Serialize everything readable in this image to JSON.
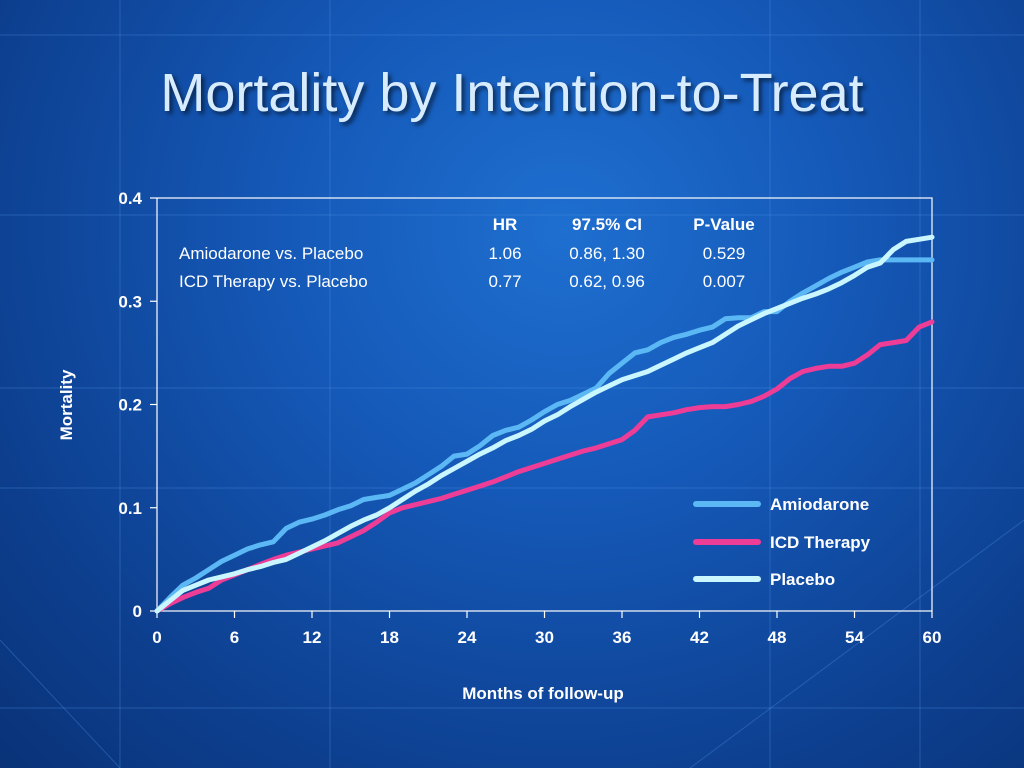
{
  "slide": {
    "title": "Mortality by Intention-to-Treat"
  },
  "colors": {
    "background": "#1559b8",
    "title": "#d8ecff",
    "amiodarone": "#5cb8f5",
    "icd_therapy": "#ee3d96",
    "placebo": "#c9f6ff"
  },
  "stats_table": {
    "headers": [
      "HR",
      "97.5% CI",
      "P-Value"
    ],
    "rows": [
      {
        "label": "Amiodarone vs. Placebo",
        "hr": "1.06",
        "ci": "0.86, 1.30",
        "p": "0.529"
      },
      {
        "label": "ICD Therapy vs. Placebo",
        "hr": "0.77",
        "ci": "0.62, 0.96",
        "p": "0.007"
      }
    ]
  },
  "chart_data": {
    "type": "line",
    "title": "",
    "xlabel": "Months of follow-up",
    "ylabel": "Mortality",
    "xlim": [
      0,
      60
    ],
    "ylim": [
      0,
      0.4
    ],
    "xticks": [
      "0",
      "6",
      "12",
      "18",
      "24",
      "30",
      "36",
      "42",
      "48",
      "54",
      "60"
    ],
    "yticks": [
      "0",
      "0.1",
      "0.2",
      "0.3",
      "0.4"
    ],
    "grid": false,
    "legend_position": "bottom-right",
    "series": [
      {
        "name": "Amiodarone",
        "color": "#5cb8f5",
        "x": [
          0,
          1,
          2,
          3,
          4,
          5,
          6,
          7,
          8,
          9,
          10,
          11,
          12,
          13,
          14,
          15,
          16,
          17,
          18,
          19,
          20,
          21,
          22,
          23,
          24,
          25,
          26,
          27,
          28,
          29,
          30,
          31,
          32,
          33,
          34,
          35,
          36,
          37,
          38,
          39,
          40,
          41,
          42,
          43,
          44,
          45,
          46,
          47,
          48,
          49,
          50,
          51,
          52,
          53,
          54,
          55,
          56,
          57,
          58,
          59,
          60
        ],
        "y": [
          0,
          0.013,
          0.025,
          0.032,
          0.04,
          0.048,
          0.054,
          0.06,
          0.064,
          0.067,
          0.08,
          0.086,
          0.089,
          0.093,
          0.098,
          0.102,
          0.108,
          0.11,
          0.112,
          0.118,
          0.124,
          0.132,
          0.14,
          0.15,
          0.152,
          0.16,
          0.17,
          0.175,
          0.178,
          0.185,
          0.193,
          0.2,
          0.204,
          0.21,
          0.216,
          0.23,
          0.24,
          0.25,
          0.253,
          0.26,
          0.265,
          0.268,
          0.272,
          0.275,
          0.283,
          0.284,
          0.284,
          0.29,
          0.29,
          0.3,
          0.308,
          0.315,
          0.322,
          0.328,
          0.333,
          0.338,
          0.34,
          0.34,
          0.34,
          0.34,
          0.34
        ]
      },
      {
        "name": "ICD Therapy",
        "color": "#ee3d96",
        "x": [
          0,
          1,
          2,
          3,
          4,
          5,
          6,
          7,
          8,
          9,
          10,
          11,
          12,
          13,
          14,
          15,
          16,
          17,
          18,
          19,
          20,
          21,
          22,
          23,
          24,
          25,
          26,
          27,
          28,
          29,
          30,
          31,
          32,
          33,
          34,
          35,
          36,
          37,
          38,
          39,
          40,
          41,
          42,
          43,
          44,
          45,
          46,
          47,
          48,
          49,
          50,
          51,
          52,
          53,
          54,
          55,
          56,
          57,
          58,
          59,
          60
        ],
        "y": [
          0,
          0.007,
          0.013,
          0.018,
          0.022,
          0.03,
          0.035,
          0.04,
          0.045,
          0.05,
          0.054,
          0.057,
          0.06,
          0.063,
          0.066,
          0.072,
          0.078,
          0.086,
          0.095,
          0.1,
          0.103,
          0.106,
          0.109,
          0.113,
          0.117,
          0.121,
          0.125,
          0.13,
          0.135,
          0.139,
          0.143,
          0.147,
          0.151,
          0.155,
          0.158,
          0.162,
          0.166,
          0.175,
          0.188,
          0.19,
          0.192,
          0.195,
          0.197,
          0.198,
          0.198,
          0.2,
          0.203,
          0.208,
          0.215,
          0.225,
          0.232,
          0.235,
          0.237,
          0.237,
          0.24,
          0.248,
          0.258,
          0.26,
          0.262,
          0.275,
          0.28
        ]
      },
      {
        "name": "Placebo",
        "color": "#c9f6ff",
        "x": [
          0,
          1,
          2,
          3,
          4,
          5,
          6,
          7,
          8,
          9,
          10,
          11,
          12,
          13,
          14,
          15,
          16,
          17,
          18,
          19,
          20,
          21,
          22,
          23,
          24,
          25,
          26,
          27,
          28,
          29,
          30,
          31,
          32,
          33,
          34,
          35,
          36,
          37,
          38,
          39,
          40,
          41,
          42,
          43,
          44,
          45,
          46,
          47,
          48,
          49,
          50,
          51,
          52,
          53,
          54,
          55,
          56,
          57,
          58,
          59,
          60
        ],
        "y": [
          0,
          0.01,
          0.02,
          0.025,
          0.03,
          0.033,
          0.036,
          0.04,
          0.043,
          0.047,
          0.05,
          0.056,
          0.062,
          0.068,
          0.075,
          0.082,
          0.088,
          0.093,
          0.1,
          0.108,
          0.116,
          0.123,
          0.131,
          0.138,
          0.145,
          0.152,
          0.158,
          0.165,
          0.17,
          0.176,
          0.184,
          0.19,
          0.198,
          0.205,
          0.212,
          0.218,
          0.224,
          0.228,
          0.232,
          0.238,
          0.244,
          0.25,
          0.255,
          0.26,
          0.268,
          0.276,
          0.282,
          0.288,
          0.293,
          0.298,
          0.303,
          0.307,
          0.312,
          0.318,
          0.325,
          0.333,
          0.337,
          0.35,
          0.358,
          0.36,
          0.362
        ]
      }
    ]
  }
}
